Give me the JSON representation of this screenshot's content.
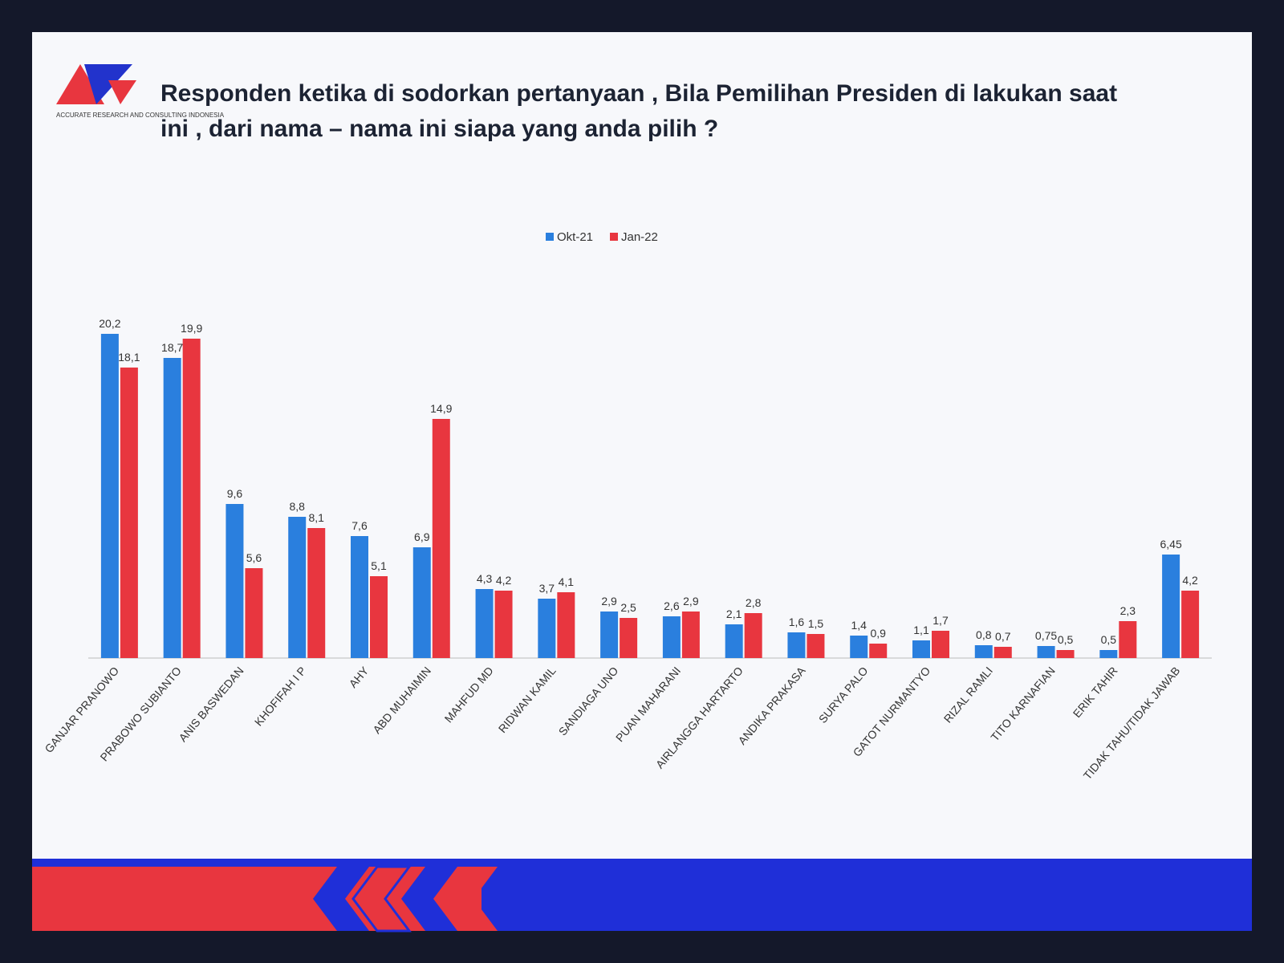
{
  "chart_data": {
    "type": "bar",
    "logo_text": "ACCURATE RESEARCH AND CONSULTING INDONESIA",
    "title": "Responden ketika di sodorkan pertanyaan , Bila Pemilihan Presiden di lakukan saat ini , dari nama – nama ini siapa yang anda pilih ?",
    "categories": [
      "GANJAR PRANOWO",
      "PRABOWO SUBIANTO",
      "ANIS BASWEDAN",
      "KHOFIFAH I P",
      "AHY",
      "ABD MUHAIMIN",
      "MAHFUD MD",
      "RIDWAN KAMIL",
      "SANDIAGA UNO",
      "PUAN MAHARANI",
      "AIRLANGGA HARTARTO",
      "ANDIKA PRAKASA",
      "SURYA PALO",
      "GATOT NURMANTYO",
      "RIZAL RAMLI",
      "TITO KARNAFIAN",
      "ERIK TAHIR",
      "TIDAK TAHU/TIDAK JAWAB"
    ],
    "series": [
      {
        "name": "Okt-21",
        "color": "#2a7fde",
        "values": [
          20.2,
          18.7,
          9.6,
          8.8,
          7.6,
          6.9,
          4.3,
          3.7,
          2.9,
          2.6,
          2.1,
          1.6,
          1.4,
          1.1,
          0.8,
          0.75,
          0.5,
          6.45
        ],
        "value_labels": [
          "20,2",
          "18,7",
          "9,6",
          "8,8",
          "7,6",
          "6,9",
          "4,3",
          "3,7",
          "2,9",
          "2,6",
          "2,1",
          "1,6",
          "1,4",
          "1,1",
          "0,8",
          "0,75",
          "0,5",
          "6,45"
        ]
      },
      {
        "name": "Jan-22",
        "color": "#e8363f",
        "values": [
          18.1,
          19.9,
          5.6,
          8.1,
          5.1,
          14.9,
          4.2,
          4.1,
          2.5,
          2.9,
          2.8,
          1.5,
          0.9,
          1.7,
          0.7,
          0.5,
          2.3,
          4.2
        ],
        "value_labels": [
          "18,1",
          "19,9",
          "5,6",
          "8,1",
          "5,1",
          "14,9",
          "4,2",
          "4,1",
          "2,5",
          "2,9",
          "2,8",
          "1,5",
          "0,9",
          "1,7",
          "0,7",
          "0,5",
          "2,3",
          "4,2"
        ]
      }
    ],
    "ylim": [
      0,
      21
    ],
    "legend": "top"
  }
}
